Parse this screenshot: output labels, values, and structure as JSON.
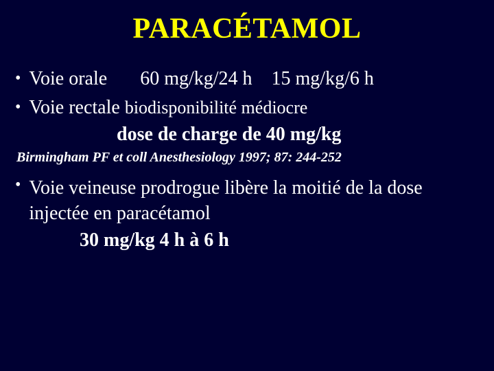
{
  "colors": {
    "background": "#000033",
    "title": "#ffff00",
    "body_text": "#ffffff"
  },
  "typography": {
    "font_family": "Times New Roman",
    "title_fontsize_pt": 32,
    "body_fontsize_pt": 21,
    "citation_fontsize_pt": 15
  },
  "title": "PARACÉTAMOL",
  "bullets": {
    "b1_label": "Voie orale",
    "b1_dose1": "60 mg/kg/24 h",
    "b1_dose2": "15 mg/kg/6 h",
    "b2_label": "Voie rectale",
    "b2_note": "biodisponibilité médiocre",
    "b2_dosage": "dose de charge de 40 mg/kg",
    "citation": "Birmingham PF et coll Anesthesiology 1997; 87: 244-252",
    "b3_text": "Voie veineuse prodrogue libère la moitié de la dose injectée en paracétamol",
    "b3_dose": "30 mg/kg 4 h à 6 h"
  }
}
